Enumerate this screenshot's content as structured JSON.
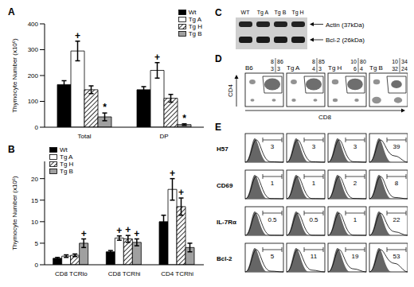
{
  "chart_data": [
    {
      "panel": "A",
      "type": "bar",
      "ylabel": "Thymocyte Number (x10⁶)",
      "categories": [
        "Total",
        "DP"
      ],
      "series": [
        {
          "name": "Wt",
          "color": "#000000",
          "values": [
            165,
            145
          ],
          "errors": [
            15,
            12
          ],
          "marks": [
            null,
            null
          ]
        },
        {
          "name": "Tg A",
          "color": "#ffffff",
          "values": [
            295,
            220
          ],
          "errors": [
            38,
            30
          ],
          "marks": [
            "+",
            "+"
          ]
        },
        {
          "name": "Tg H",
          "color": "#ffffff",
          "values": [
            145,
            112
          ],
          "errors": [
            15,
            15
          ],
          "marks": [
            null,
            null
          ]
        },
        {
          "name": "Tg B",
          "color": "#a0a0a0",
          "values": [
            40,
            10
          ],
          "errors": [
            15,
            3
          ],
          "marks": [
            "*",
            "*"
          ]
        }
      ],
      "ylim": [
        0,
        400
      ],
      "yticks": [
        0,
        100,
        200,
        300,
        400
      ],
      "legend": "upper right"
    },
    {
      "panel": "B",
      "type": "bar",
      "ylabel": "Thymocyte Number (x10⁶)",
      "categories": [
        "CD8 TCRlo",
        "CD8 TCRhi",
        "CD4 TCRhi"
      ],
      "series": [
        {
          "name": "Wt",
          "color": "#000000",
          "values": [
            1.5,
            3,
            10
          ],
          "errors": [
            0.2,
            0.3,
            1.5
          ],
          "marks": [
            null,
            null,
            null
          ]
        },
        {
          "name": "Tg A",
          "color": "#ffffff",
          "values": [
            2,
            6.2,
            17.5
          ],
          "errors": [
            0.3,
            0.5,
            2.5
          ],
          "marks": [
            null,
            "+",
            "+"
          ]
        },
        {
          "name": "Tg H",
          "color": "#ffffff",
          "values": [
            2.2,
            6,
            13.5
          ],
          "errors": [
            0.3,
            0.8,
            2
          ],
          "marks": [
            null,
            "+",
            "+"
          ]
        },
        {
          "name": "Tg B",
          "color": "#a0a0a0",
          "values": [
            5,
            5.2,
            4
          ],
          "errors": [
            1,
            0.8,
            1
          ],
          "marks": [
            "+",
            "+",
            null
          ]
        }
      ],
      "ylim": [
        0,
        24
      ],
      "yticks": [
        0,
        5,
        10,
        15,
        20
      ],
      "legend": "upper left"
    }
  ],
  "blot": {
    "panel": "C",
    "lanes": [
      "WT",
      "Tg A",
      "Tg B",
      "Tg H"
    ],
    "bands": [
      "Actin (37kDa)",
      "Bcl-2 (26kDa)"
    ]
  },
  "flow": {
    "panel": "D",
    "yaxis": "CD4",
    "xaxis": "CD8",
    "plots": [
      {
        "name": "B6",
        "quadrants": [
          8,
          86,
          3,
          3
        ]
      },
      {
        "name": "Tg A",
        "quadrants": [
          8,
          85,
          4,
          3
        ]
      },
      {
        "name": "Tg H",
        "quadrants": [
          10,
          80,
          6,
          4
        ]
      },
      {
        "name": "Tg B",
        "quadrants": [
          10,
          34,
          32,
          24
        ]
      }
    ]
  },
  "histograms": {
    "panel": "E",
    "rows": [
      {
        "label": "H57",
        "values": [
          3,
          3,
          3,
          39
        ]
      },
      {
        "label": "CD69",
        "values": [
          1,
          1,
          2,
          8
        ]
      },
      {
        "label": "IL-7Rα",
        "values": [
          0.5,
          0.5,
          1,
          22
        ]
      },
      {
        "label": "Bcl-2",
        "values": [
          5,
          11,
          19,
          53
        ]
      }
    ]
  }
}
